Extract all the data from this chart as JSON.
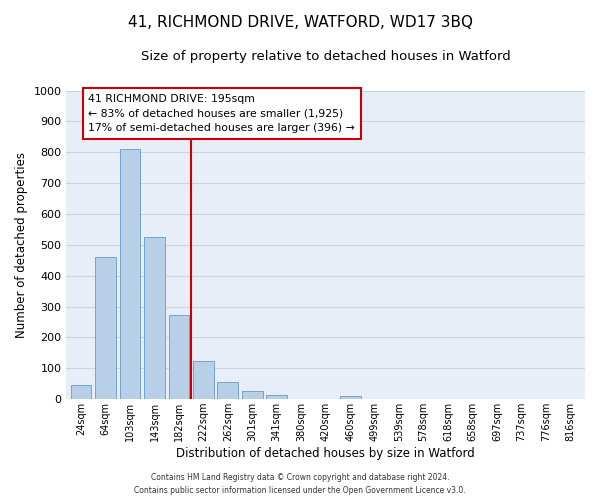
{
  "title": "41, RICHMOND DRIVE, WATFORD, WD17 3BQ",
  "subtitle": "Size of property relative to detached houses in Watford",
  "xlabel": "Distribution of detached houses by size in Watford",
  "ylabel": "Number of detached properties",
  "categories": [
    "24sqm",
    "64sqm",
    "103sqm",
    "143sqm",
    "182sqm",
    "222sqm",
    "262sqm",
    "301sqm",
    "341sqm",
    "380sqm",
    "420sqm",
    "460sqm",
    "499sqm",
    "539sqm",
    "578sqm",
    "618sqm",
    "658sqm",
    "697sqm",
    "737sqm",
    "776sqm",
    "816sqm"
  ],
  "values": [
    47,
    460,
    810,
    525,
    272,
    125,
    57,
    25,
    12,
    0,
    0,
    9,
    0,
    0,
    0,
    0,
    0,
    0,
    0,
    0,
    0
  ],
  "bar_color": "#b8cfe8",
  "bar_edgecolor": "#6699cc",
  "vline_x": 4.5,
  "vline_color": "#cc0000",
  "box_text_line1": "41 RICHMOND DRIVE: 195sqm",
  "box_text_line2": "← 83% of detached houses are smaller (1,925)",
  "box_text_line3": "17% of semi-detached houses are larger (396) →",
  "box_edgecolor": "#cc0000",
  "box_facecolor": "#ffffff",
  "ylim": [
    0,
    1000
  ],
  "yticks": [
    0,
    100,
    200,
    300,
    400,
    500,
    600,
    700,
    800,
    900,
    1000
  ],
  "grid_color": "#c8d4e4",
  "bg_color": "#e8eef8",
  "footer_line1": "Contains HM Land Registry data © Crown copyright and database right 2024.",
  "footer_line2": "Contains public sector information licensed under the Open Government Licence v3.0.",
  "title_fontsize": 11,
  "subtitle_fontsize": 9.5
}
